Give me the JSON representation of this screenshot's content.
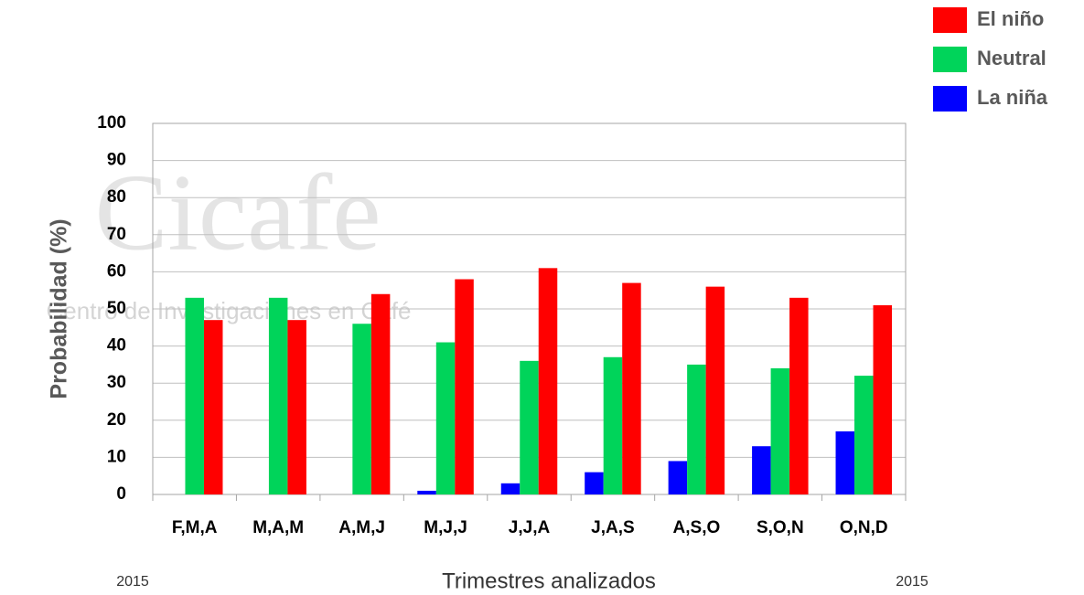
{
  "chart_data": {
    "type": "bar",
    "ylabel": "Probabilidad (%)",
    "xlabel": "Trimestres analizados",
    "year_left": "2015",
    "year_right": "2015",
    "watermark": "Cicafe",
    "watermark_subtitle": "Centro de Investigaciones en Café",
    "categories": [
      "F,M,A",
      "M,A,M",
      "A,M,J",
      "M,J,J",
      "J,J,A",
      "J,A,S",
      "A,S,O",
      "S,O,N",
      "O,N,D"
    ],
    "series": [
      {
        "name": "La niña",
        "color": "#0000ff",
        "values": [
          0,
          0,
          0,
          1,
          3,
          6,
          9,
          13,
          17
        ]
      },
      {
        "name": "Neutral",
        "color": "#00d45a",
        "values": [
          53,
          53,
          46,
          41,
          36,
          37,
          35,
          34,
          32
        ]
      },
      {
        "name": "El niño",
        "color": "#ff0000",
        "values": [
          47,
          47,
          54,
          58,
          61,
          57,
          56,
          53,
          51
        ]
      }
    ],
    "legend_order": [
      2,
      1,
      0
    ],
    "legend": "top-right",
    "ylim": [
      0,
      100
    ],
    "yticks": [
      0,
      10,
      20,
      30,
      40,
      50,
      60,
      70,
      80,
      90,
      100
    ],
    "grid": true
  }
}
